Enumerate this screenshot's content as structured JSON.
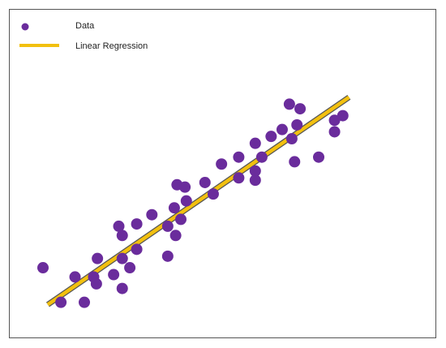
{
  "chart_data": {
    "type": "scatter",
    "title": "",
    "xlabel": "",
    "ylabel": "",
    "grid": false,
    "axes_visible": false,
    "legend_position": "top-left",
    "legend": [
      {
        "label": "Data",
        "marker": "circle"
      },
      {
        "label": "Linear Regression",
        "marker": "line"
      }
    ],
    "colors": {
      "points": "#6a2c9c",
      "regression_fill": "#f2c00f",
      "regression_outline": "#555555"
    },
    "x_range": [
      0,
      100
    ],
    "y_range": [
      0,
      100
    ],
    "series": [
      {
        "name": "Data",
        "points": [
          [
            0.0,
            19.0
          ],
          [
            5.2,
            4.0
          ],
          [
            9.3,
            15.0
          ],
          [
            12.0,
            4.0
          ],
          [
            14.7,
            15.0
          ],
          [
            15.5,
            12.0
          ],
          [
            15.8,
            23.0
          ],
          [
            20.5,
            16.0
          ],
          [
            22.0,
            37.0
          ],
          [
            23.0,
            33.0
          ],
          [
            23.0,
            23.0
          ],
          [
            23.0,
            10.0
          ],
          [
            25.2,
            19.0
          ],
          [
            27.2,
            38.0
          ],
          [
            27.2,
            27.0
          ],
          [
            31.6,
            42.0
          ],
          [
            36.2,
            24.0
          ],
          [
            36.2,
            37.0
          ],
          [
            38.1,
            45.0
          ],
          [
            38.5,
            33.0
          ],
          [
            38.9,
            55.0
          ],
          [
            40.0,
            40.0
          ],
          [
            41.6,
            48.0
          ],
          [
            41.2,
            54.0
          ],
          [
            47.0,
            56.0
          ],
          [
            49.4,
            51.0
          ],
          [
            51.8,
            64.0
          ],
          [
            56.8,
            67.0
          ],
          [
            56.8,
            58.0
          ],
          [
            61.6,
            61.0
          ],
          [
            61.6,
            73.0
          ],
          [
            61.6,
            57.0
          ],
          [
            63.5,
            67.0
          ],
          [
            66.2,
            76.0
          ],
          [
            69.4,
            79.0
          ],
          [
            71.5,
            90.0
          ],
          [
            72.2,
            75.0
          ],
          [
            73.0,
            65.0
          ],
          [
            73.7,
            81.0
          ],
          [
            74.6,
            88.0
          ],
          [
            80.0,
            67.0
          ],
          [
            84.6,
            83.0
          ],
          [
            84.6,
            78.0
          ],
          [
            87.0,
            85.0
          ]
        ]
      },
      {
        "name": "Linear Regression",
        "line": {
          "x0": 1.4,
          "y0": 3.0,
          "x1": 88.8,
          "y1": 93.0
        }
      }
    ]
  }
}
